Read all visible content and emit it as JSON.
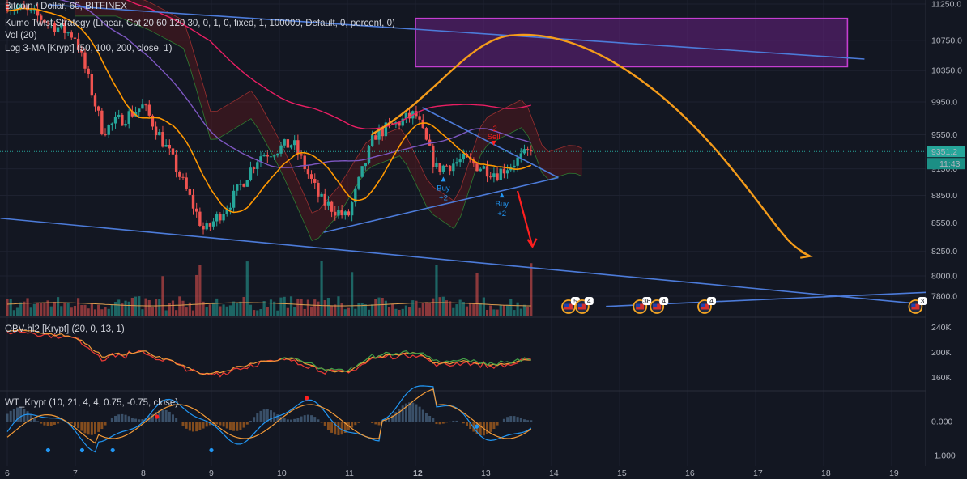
{
  "header": {
    "symbol_line": "Bitcoin / Dollar, 60, BITFINEX",
    "strategy_line": "Kumo Twist Strategy (Linear, Cpt 20 60 120 30, 0, 1, 0, fixed, 1, 100000, Default, 0, percent, 0)",
    "vol_line": "Vol (20)",
    "ma_line": "Log 3-MA [Krypt] (50, 100, 200, close, 1)"
  },
  "price_axis": {
    "ticks": [
      "11250.0",
      "10750.0",
      "10350.0",
      "9950.0",
      "9550.0",
      "9150.0",
      "8850.0",
      "8550.0",
      "8250.0",
      "8000.0",
      "7800.0"
    ],
    "last_price": "9351.2",
    "countdown": "11:43"
  },
  "obv_panel": {
    "label": "OBV-hl2 [Krypt] (20, 0, 13, 1)",
    "ticks": [
      "240K",
      "200K",
      "160K"
    ]
  },
  "wt_panel": {
    "label": "WT_Krypt (10, 21, 4, 4, 0.75, -0.75, close)",
    "ticks": [
      "0.000",
      "-1.000"
    ]
  },
  "time_axis": [
    "6",
    "7",
    "8",
    "9",
    "10",
    "11",
    "12",
    "13",
    "14",
    "15",
    "16",
    "17",
    "18",
    "19"
  ],
  "signals": {
    "buy1": [
      "Buy",
      "+2"
    ],
    "buy2": [
      "Buy",
      "+2"
    ],
    "sell": [
      "-2",
      "Sell"
    ]
  },
  "events": [
    {
      "badge": "5"
    },
    {
      "badge": "4"
    },
    {
      "badge": "36"
    },
    {
      "badge": "4"
    },
    {
      "badge": "4"
    },
    {
      "badge": "3"
    }
  ],
  "colors": {
    "background": "#131722",
    "up": "#26a69a",
    "down": "#ef5350",
    "trendline": "#4c7bd9",
    "forecast": "#f59c1a",
    "target_box": "#8e24aa",
    "ma_fast": "#ff9800",
    "ma_mid": "#7e57c2",
    "ma_slow": "#e91e63"
  },
  "chart_data": {
    "type": "candlestick",
    "title": "Bitcoin / Dollar, 60, BITFINEX",
    "x": [
      "6",
      "7",
      "8",
      "9",
      "10",
      "11",
      "12",
      "13",
      "14",
      "15",
      "16",
      "17",
      "18",
      "19"
    ],
    "ylim": [
      7700,
      11300
    ],
    "scale": "log",
    "last_price": 9351.2,
    "price_path": [
      {
        "day": 6.0,
        "price": 11250
      },
      {
        "day": 6.5,
        "price": 11050
      },
      {
        "day": 7.0,
        "price": 10800
      },
      {
        "day": 7.4,
        "price": 9600
      },
      {
        "day": 8.0,
        "price": 9900
      },
      {
        "day": 8.4,
        "price": 9300
      },
      {
        "day": 8.9,
        "price": 8450
      },
      {
        "day": 9.3,
        "price": 8800
      },
      {
        "day": 9.7,
        "price": 9300
      },
      {
        "day": 10.2,
        "price": 9450
      },
      {
        "day": 10.6,
        "price": 8800
      },
      {
        "day": 11.0,
        "price": 8600
      },
      {
        "day": 11.4,
        "price": 9550
      },
      {
        "day": 12.0,
        "price": 9800
      },
      {
        "day": 12.3,
        "price": 9150
      },
      {
        "day": 12.7,
        "price": 9250
      },
      {
        "day": 13.2,
        "price": 9100
      },
      {
        "day": 13.7,
        "price": 9351.2
      }
    ],
    "series": [
      {
        "name": "OBV-hl2 [Krypt]",
        "type": "line",
        "ylim": [
          140000,
          250000
        ]
      },
      {
        "name": "WT_Krypt",
        "type": "oscillator",
        "ylim": [
          -1.2,
          0.8
        ]
      }
    ],
    "annotations": {
      "triangle_apex_day": 14.1,
      "forecast_peak_price": 10820,
      "forecast_end_price": 8200,
      "target_zone": [
        10400,
        11050
      ]
    }
  }
}
